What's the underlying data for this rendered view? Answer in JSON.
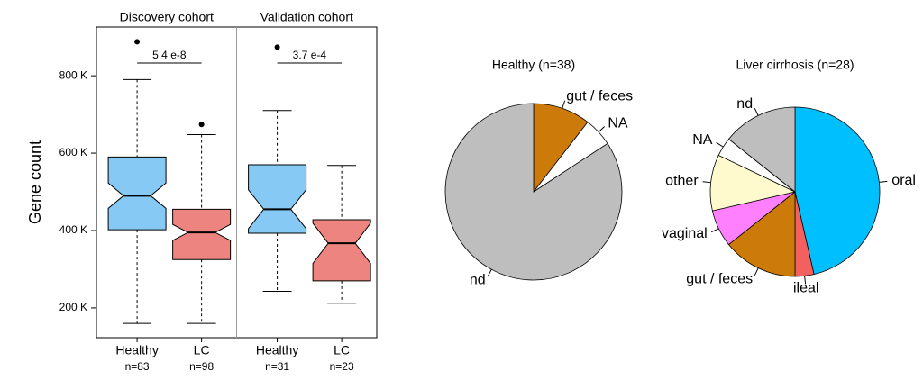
{
  "chart_data": [
    {
      "type": "box",
      "ylabel": "Gene count",
      "ylim": [
        123000,
        926000
      ],
      "yticks": [
        {
          "value": 200000,
          "label": "200 K"
        },
        {
          "value": 400000,
          "label": "400 K"
        },
        {
          "value": 600000,
          "label": "600 K"
        },
        {
          "value": 800000,
          "label": "800 K"
        }
      ],
      "panels": [
        {
          "title": "Discovery cohort",
          "annotation": "5.4 e-8",
          "groups": [
            {
              "name": "Healthy",
              "n": 83,
              "n_label": "n=83",
              "color": "#87c9f5",
              "whislo": 160000,
              "q1": 402000,
              "median": 490000,
              "q3": 590000,
              "whishi": 790000,
              "fliers": [
                888000
              ]
            },
            {
              "name": "LC",
              "n": 98,
              "n_label": "n=98",
              "color": "#ee8480",
              "whislo": 160000,
              "q1": 325000,
              "median": 395000,
              "q3": 455000,
              "whishi": 648000,
              "fliers": [
                674000
              ]
            }
          ]
        },
        {
          "title": "Validation cohort",
          "annotation": "3.7 e-4",
          "groups": [
            {
              "name": "Healthy",
              "n": 31,
              "n_label": "n=31",
              "color": "#87c9f5",
              "whislo": 243000,
              "q1": 393000,
              "median": 455000,
              "q3": 570000,
              "whishi": 710000,
              "fliers": [
                874000
              ]
            },
            {
              "name": "LC",
              "n": 23,
              "n_label": "n=23",
              "color": "#ee8480",
              "whislo": 212000,
              "q1": 270000,
              "median": 367000,
              "q3": 428000,
              "whishi": 568000,
              "fliers": []
            }
          ]
        }
      ]
    },
    {
      "type": "pie",
      "title": "Healthy (n=38)",
      "categories": [
        "gut / feces",
        "NA",
        "nd"
      ],
      "values": [
        10.5,
        5.3,
        84.2
      ],
      "colors": [
        "#cc7a0a",
        "#ffffff",
        "#bebebe"
      ]
    },
    {
      "type": "pie",
      "title": "Liver cirrhosis (n=28)",
      "categories": [
        "oral",
        "ileal",
        "gut / feces",
        "vaginal",
        "other",
        "NA",
        "nd"
      ],
      "values": [
        46.4,
        3.6,
        14.3,
        7.1,
        10.7,
        3.6,
        14.3
      ],
      "colors": [
        "#00bfff",
        "#f26060",
        "#cc7a0a",
        "#ff80ff",
        "#fffacd",
        "#ffffff",
        "#bebebe"
      ]
    }
  ]
}
